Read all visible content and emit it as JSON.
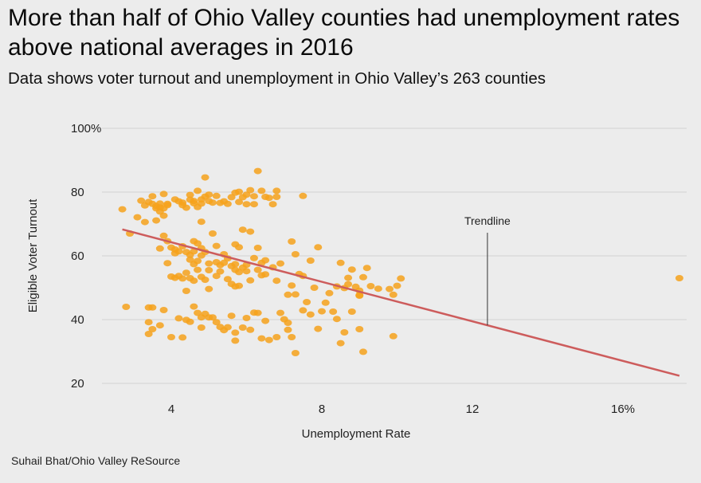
{
  "header": {
    "title": "More than half of Ohio Valley counties had unemployment rates above national averages in 2016",
    "subtitle": "Data shows voter turnout and unemployment in Ohio Valley’s 263 counties"
  },
  "footer": {
    "credit": "Suhail Bhat/Ohio Valley ReSource"
  },
  "colors": {
    "background": "#ececec",
    "point": "#f6a21c",
    "trendline": "#cd5c5c",
    "grid": "#d2d2d2"
  },
  "chart_data": {
    "type": "scatter",
    "xlabel": "Unemployment Rate",
    "ylabel": "Eligible Voter Turnout",
    "xlim": [
      2.5,
      18
    ],
    "ylim": [
      20,
      100
    ],
    "x_ticks": [
      4,
      8,
      12,
      16
    ],
    "x_tick_labels": [
      "4",
      "8",
      "12",
      "16%"
    ],
    "y_ticks": [
      20,
      40,
      60,
      80,
      100
    ],
    "y_tick_labels": [
      "20",
      "40",
      "60",
      "80",
      "100%"
    ],
    "grid": "horizontal",
    "trendline": {
      "x": [
        2.7,
        17.5
      ],
      "y": [
        68.3,
        22.4
      ],
      "label": "Trendline",
      "label_at_x": 12.4
    },
    "points": [
      [
        2.7,
        74.6
      ],
      [
        2.9,
        67
      ],
      [
        3.1,
        72.1
      ],
      [
        3.2,
        77.3
      ],
      [
        3.3,
        75.8
      ],
      [
        3.3,
        70.6
      ],
      [
        3.4,
        76.9
      ],
      [
        3.5,
        78.7
      ],
      [
        3.5,
        76.3
      ],
      [
        3.6,
        75.6
      ],
      [
        3.6,
        74.9
      ],
      [
        3.7,
        76.4
      ],
      [
        3.7,
        75.2
      ],
      [
        3.8,
        74.9
      ],
      [
        3.8,
        79.4
      ],
      [
        3.9,
        76.3
      ],
      [
        3.9,
        75.9
      ],
      [
        3.8,
        72.6
      ],
      [
        3.7,
        73.9
      ],
      [
        3.6,
        71.1
      ],
      [
        4.1,
        77.7
      ],
      [
        4.2,
        77.1
      ],
      [
        4.3,
        76.7
      ],
      [
        4.3,
        75.9
      ],
      [
        4.4,
        75.1
      ],
      [
        4.5,
        79.1
      ],
      [
        4.5,
        77.6
      ],
      [
        4.6,
        77.2
      ],
      [
        4.6,
        76.5
      ],
      [
        4.7,
        80.4
      ],
      [
        4.7,
        75.3
      ],
      [
        4.8,
        77.7
      ],
      [
        4.8,
        76.4
      ],
      [
        4.9,
        78.6
      ],
      [
        5,
        79.2
      ],
      [
        5,
        77.2
      ],
      [
        4.9,
        84.6
      ],
      [
        5.1,
        76.7
      ],
      [
        5.2,
        78.8
      ],
      [
        5.3,
        76.6
      ],
      [
        5.4,
        77.1
      ],
      [
        5.5,
        76.3
      ],
      [
        5.6,
        78.4
      ],
      [
        5.7,
        79.8
      ],
      [
        5.8,
        80.1
      ],
      [
        5.8,
        76.9
      ],
      [
        5.9,
        78.4
      ],
      [
        6,
        76.2
      ],
      [
        6,
        79.2
      ],
      [
        6.1,
        80.6
      ],
      [
        6.2,
        78.7
      ],
      [
        6.2,
        76.2
      ],
      [
        6.3,
        86.6
      ],
      [
        6.4,
        80.4
      ],
      [
        6.5,
        78.5
      ],
      [
        6.6,
        78.2
      ],
      [
        6.7,
        76.2
      ],
      [
        6.8,
        80.4
      ],
      [
        6.8,
        78.5
      ],
      [
        7.5,
        78.8
      ],
      [
        4.8,
        70.7
      ],
      [
        3.8,
        66.3
      ],
      [
        3.9,
        64.6
      ],
      [
        3.7,
        62.3
      ],
      [
        4,
        62.6
      ],
      [
        4.1,
        62
      ],
      [
        4.1,
        60.8
      ],
      [
        4.2,
        61.4
      ],
      [
        4.3,
        63
      ],
      [
        4.4,
        61.2
      ],
      [
        4.5,
        58.8
      ],
      [
        4.5,
        60.3
      ],
      [
        4.6,
        61.4
      ],
      [
        4.6,
        57.4
      ],
      [
        4.7,
        63.9
      ],
      [
        4.7,
        58.4
      ],
      [
        4.8,
        62.4
      ],
      [
        4.8,
        60.1
      ],
      [
        4.9,
        61.2
      ],
      [
        5,
        57.6
      ],
      [
        5.1,
        67
      ],
      [
        5.2,
        58
      ],
      [
        5.2,
        63.1
      ],
      [
        5.3,
        57.1
      ],
      [
        5.4,
        57.8
      ],
      [
        5.4,
        60.5
      ],
      [
        5.5,
        59.2
      ],
      [
        5.6,
        56.8
      ],
      [
        5.7,
        63.6
      ],
      [
        5.7,
        57.4
      ],
      [
        5.8,
        62.7
      ],
      [
        5.9,
        68.2
      ],
      [
        6,
        57.2
      ],
      [
        6.1,
        67.6
      ],
      [
        6.2,
        59.3
      ],
      [
        6.3,
        62.5
      ],
      [
        6.4,
        57.8
      ],
      [
        6.5,
        58.6
      ],
      [
        3.9,
        57.7
      ],
      [
        4.6,
        64.6
      ],
      [
        4,
        53.5
      ],
      [
        4.1,
        53.1
      ],
      [
        4.2,
        53.7
      ],
      [
        4.3,
        52.9
      ],
      [
        4.4,
        54.7
      ],
      [
        4.5,
        53
      ],
      [
        4.6,
        52.2
      ],
      [
        4.7,
        55.6
      ],
      [
        4.8,
        53.4
      ],
      [
        4.9,
        52.5
      ],
      [
        5,
        55.5
      ],
      [
        5,
        49.6
      ],
      [
        5.2,
        53.7
      ],
      [
        5.3,
        55.1
      ],
      [
        5.5,
        52.7
      ],
      [
        5.6,
        51.2
      ],
      [
        5.7,
        50.4
      ],
      [
        5.7,
        55.6
      ],
      [
        5.8,
        50.6
      ],
      [
        5.8,
        54.9
      ],
      [
        6,
        55.2
      ],
      [
        6.1,
        52.3
      ],
      [
        6.3,
        55.6
      ],
      [
        6.4,
        53.9
      ],
      [
        6.5,
        54.2
      ],
      [
        6.7,
        56.4
      ],
      [
        6.8,
        52.2
      ],
      [
        6.9,
        57.6
      ],
      [
        4.4,
        49
      ],
      [
        5.9,
        56.3
      ],
      [
        7.2,
        64.5
      ],
      [
        7.3,
        60.5
      ],
      [
        7.2,
        50.7
      ],
      [
        7.3,
        47.9
      ],
      [
        7.4,
        54.3
      ],
      [
        7.5,
        53.7
      ],
      [
        7.6,
        45.5
      ],
      [
        7.7,
        58.5
      ],
      [
        7.8,
        50
      ],
      [
        7.9,
        62.7
      ],
      [
        7.1,
        47.8
      ],
      [
        8.1,
        45.3
      ],
      [
        8.2,
        48.3
      ],
      [
        8.3,
        42.5
      ],
      [
        8.4,
        40.2
      ],
      [
        8.5,
        57.8
      ],
      [
        8.6,
        49.9
      ],
      [
        8.7,
        53.1
      ],
      [
        8.7,
        51.1
      ],
      [
        8.8,
        55.7
      ],
      [
        8.9,
        50.3
      ],
      [
        9,
        49.1
      ],
      [
        9,
        47.7
      ],
      [
        9.1,
        53.3
      ],
      [
        9.2,
        56.2
      ],
      [
        9.3,
        50.5
      ],
      [
        9.5,
        49.7
      ],
      [
        9.8,
        49.6
      ],
      [
        9.9,
        47.8
      ],
      [
        10,
        50.6
      ],
      [
        10.1,
        52.9
      ],
      [
        8,
        42.6
      ],
      [
        8.4,
        50.4
      ],
      [
        9,
        47.5
      ],
      [
        2.8,
        44
      ],
      [
        3.4,
        43.8
      ],
      [
        3.5,
        43.8
      ],
      [
        3.8,
        43
      ],
      [
        3.4,
        39.2
      ],
      [
        3.5,
        37
      ],
      [
        3.4,
        35.5
      ],
      [
        3.7,
        38.2
      ],
      [
        4,
        34.5
      ],
      [
        4.2,
        40.4
      ],
      [
        4.3,
        34.4
      ],
      [
        4.4,
        39.9
      ],
      [
        4.5,
        39.3
      ],
      [
        4.6,
        44.1
      ],
      [
        4.7,
        42.1
      ],
      [
        4.8,
        40.7
      ],
      [
        4.8,
        37.5
      ],
      [
        4.9,
        41.8
      ],
      [
        5,
        40.7
      ],
      [
        5.1,
        40.7
      ],
      [
        5.2,
        39.2
      ],
      [
        5.3,
        37.7
      ],
      [
        5.4,
        36.7
      ],
      [
        5.5,
        37.6
      ],
      [
        5.6,
        41.2
      ],
      [
        5.7,
        35.9
      ],
      [
        5.7,
        33.4
      ],
      [
        5.9,
        37.5
      ],
      [
        6,
        40.5
      ],
      [
        6.1,
        36.8
      ],
      [
        6.2,
        42.2
      ],
      [
        6.3,
        42.1
      ],
      [
        6.4,
        34.1
      ],
      [
        6.5,
        39.6
      ],
      [
        6.6,
        33.6
      ],
      [
        6.8,
        34.5
      ],
      [
        6.9,
        42.1
      ],
      [
        7,
        40.1
      ],
      [
        7.1,
        39
      ],
      [
        7.1,
        36.8
      ],
      [
        7.2,
        34.5
      ],
      [
        7.3,
        29.5
      ],
      [
        7.5,
        42.9
      ],
      [
        7.7,
        41.6
      ],
      [
        7.9,
        37.1
      ],
      [
        8.5,
        32.6
      ],
      [
        8.6,
        36
      ],
      [
        8.8,
        42.5
      ],
      [
        9,
        37
      ],
      [
        9.1,
        29.9
      ],
      [
        9.9,
        34.8
      ],
      [
        17.5,
        53
      ]
    ]
  }
}
